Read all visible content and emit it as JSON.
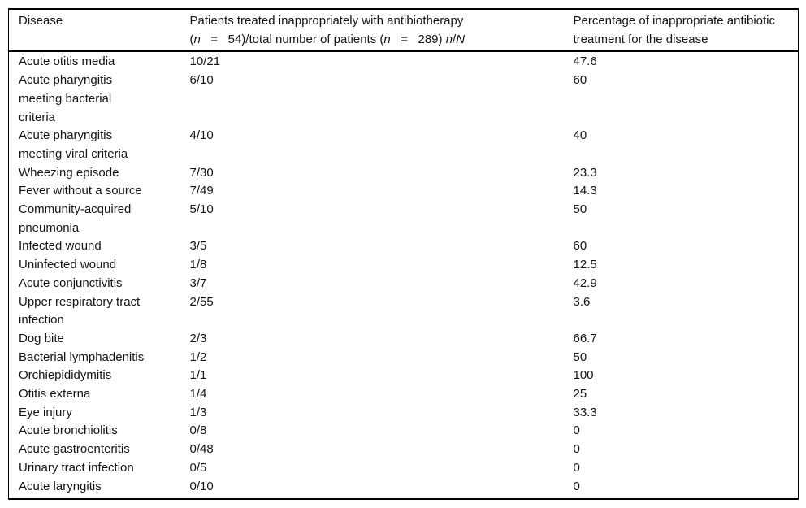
{
  "table": {
    "headers": {
      "disease": "Disease",
      "patients_line1": "Patients treated inappropriately with antibiotherapy",
      "patients_line2_segments": [
        {
          "text": "(",
          "italic": false
        },
        {
          "text": "n",
          "italic": true
        },
        {
          "text": "   =   54)/total number of patients (",
          "italic": false
        },
        {
          "text": "n",
          "italic": true
        },
        {
          "text": "   =   289) ",
          "italic": false
        },
        {
          "text": "n",
          "italic": true
        },
        {
          "text": "/",
          "italic": false
        },
        {
          "text": "N",
          "italic": true
        }
      ],
      "percentage": "Percentage of inappropriate antibiotic\ntreatment for the disease"
    },
    "rows": [
      {
        "disease": "Acute otitis media",
        "ratio": "10/21",
        "percentage": "47.6"
      },
      {
        "disease": "Acute pharyngitis\nmeeting bacterial\ncriteria",
        "ratio": "6/10",
        "percentage": "60"
      },
      {
        "disease": "Acute pharyngitis\nmeeting viral criteria",
        "ratio": "4/10",
        "percentage": "40"
      },
      {
        "disease": "Wheezing episode",
        "ratio": "7/30",
        "percentage": "23.3"
      },
      {
        "disease": "Fever without a source",
        "ratio": "7/49",
        "percentage": "14.3"
      },
      {
        "disease": "Community-acquired\npneumonia",
        "ratio": "5/10",
        "percentage": "50"
      },
      {
        "disease": "Infected wound",
        "ratio": "3/5",
        "percentage": "60"
      },
      {
        "disease": "Uninfected wound",
        "ratio": "1/8",
        "percentage": "12.5"
      },
      {
        "disease": "Acute conjunctivitis",
        "ratio": "3/7",
        "percentage": "42.9"
      },
      {
        "disease": "Upper respiratory tract\ninfection",
        "ratio": "2/55",
        "percentage": "3.6"
      },
      {
        "disease": "Dog bite",
        "ratio": "2/3",
        "percentage": "66.7"
      },
      {
        "disease": "Bacterial lymphadenitis",
        "ratio": "1/2",
        "percentage": "50"
      },
      {
        "disease": "Orchiepididymitis",
        "ratio": "1/1",
        "percentage": "100"
      },
      {
        "disease": "Otitis externa",
        "ratio": "1/4",
        "percentage": "25"
      },
      {
        "disease": "Eye injury",
        "ratio": "1/3",
        "percentage": "33.3"
      },
      {
        "disease": "Acute bronchiolitis",
        "ratio": "0/8",
        "percentage": "0"
      },
      {
        "disease": "Acute gastroenteritis",
        "ratio": "0/48",
        "percentage": "0"
      },
      {
        "disease": "Urinary tract infection",
        "ratio": "0/5",
        "percentage": "0"
      },
      {
        "disease": "Acute laryngitis",
        "ratio": "0/10",
        "percentage": "0"
      }
    ]
  }
}
